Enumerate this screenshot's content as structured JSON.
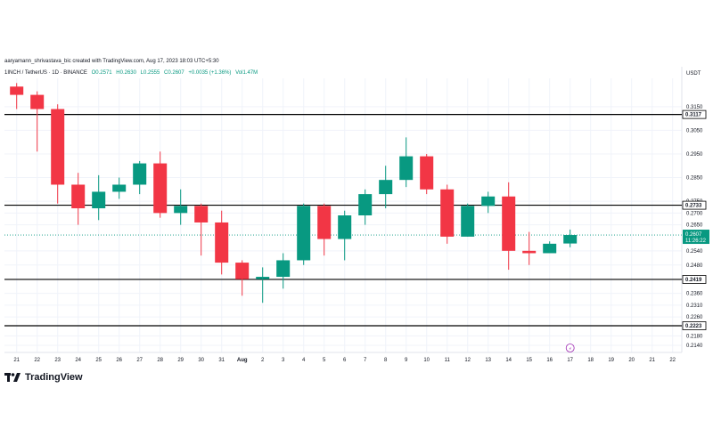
{
  "header": {
    "credit": "aaryamann_shrivastava_bic created with TradingView.com, Aug 17, 2023 18:03 UTC+5:30",
    "symbol": "1INCH / TetherUS · 1D · BINANCE",
    "ohlc": {
      "o": "O0.2571",
      "h": "H0.2630",
      "l": "L0.2555",
      "c": "C0.2607",
      "change": "+0.0035 (+1.36%)",
      "volume": "Vol1.47M"
    }
  },
  "currency_label": "USDT",
  "brand": "TradingView",
  "colors": {
    "up": "#089981",
    "down": "#f23645",
    "line": "#000000",
    "current": "#089981",
    "grid": "#f0f3fa"
  },
  "chart_data": {
    "type": "candlestick",
    "x": [
      "21",
      "22",
      "23",
      "24",
      "25",
      "26",
      "27",
      "28",
      "29",
      "30",
      "31",
      "Aug",
      "2",
      "3",
      "4",
      "5",
      "6",
      "7",
      "8",
      "9",
      "10",
      "11",
      "12",
      "13",
      "14",
      "15",
      "16",
      "17"
    ],
    "ohlc": [
      {
        "o": 0.3235,
        "h": 0.325,
        "l": 0.314,
        "c": 0.32
      },
      {
        "o": 0.32,
        "h": 0.3215,
        "l": 0.296,
        "c": 0.314
      },
      {
        "o": 0.314,
        "h": 0.316,
        "l": 0.274,
        "c": 0.282
      },
      {
        "o": 0.282,
        "h": 0.287,
        "l": 0.265,
        "c": 0.272
      },
      {
        "o": 0.272,
        "h": 0.286,
        "l": 0.267,
        "c": 0.279
      },
      {
        "o": 0.279,
        "h": 0.285,
        "l": 0.276,
        "c": 0.282
      },
      {
        "o": 0.282,
        "h": 0.292,
        "l": 0.278,
        "c": 0.291
      },
      {
        "o": 0.291,
        "h": 0.296,
        "l": 0.268,
        "c": 0.27
      },
      {
        "o": 0.27,
        "h": 0.28,
        "l": 0.265,
        "c": 0.273
      },
      {
        "o": 0.273,
        "h": 0.274,
        "l": 0.252,
        "c": 0.266
      },
      {
        "o": 0.266,
        "h": 0.271,
        "l": 0.244,
        "c": 0.249
      },
      {
        "o": 0.249,
        "h": 0.25,
        "l": 0.235,
        "c": 0.242
      },
      {
        "o": 0.242,
        "h": 0.247,
        "l": 0.232,
        "c": 0.243
      },
      {
        "o": 0.243,
        "h": 0.253,
        "l": 0.238,
        "c": 0.25
      },
      {
        "o": 0.25,
        "h": 0.274,
        "l": 0.248,
        "c": 0.273
      },
      {
        "o": 0.273,
        "h": 0.274,
        "l": 0.252,
        "c": 0.259
      },
      {
        "o": 0.259,
        "h": 0.271,
        "l": 0.25,
        "c": 0.269
      },
      {
        "o": 0.269,
        "h": 0.28,
        "l": 0.265,
        "c": 0.278
      },
      {
        "o": 0.278,
        "h": 0.29,
        "l": 0.272,
        "c": 0.284
      },
      {
        "o": 0.284,
        "h": 0.302,
        "l": 0.281,
        "c": 0.294
      },
      {
        "o": 0.294,
        "h": 0.295,
        "l": 0.278,
        "c": 0.28
      },
      {
        "o": 0.28,
        "h": 0.282,
        "l": 0.257,
        "c": 0.26
      },
      {
        "o": 0.26,
        "h": 0.274,
        "l": 0.26,
        "c": 0.273
      },
      {
        "o": 0.273,
        "h": 0.279,
        "l": 0.27,
        "c": 0.277
      },
      {
        "o": 0.277,
        "h": 0.283,
        "l": 0.246,
        "c": 0.254
      },
      {
        "o": 0.254,
        "h": 0.262,
        "l": 0.248,
        "c": 0.253
      },
      {
        "o": 0.253,
        "h": 0.258,
        "l": 0.253,
        "c": 0.257
      },
      {
        "o": 0.2571,
        "h": 0.263,
        "l": 0.2555,
        "c": 0.2607
      }
    ],
    "extra_x_ticks": [
      "18",
      "19",
      "20",
      "21",
      "22"
    ],
    "y_ticks": [
      "0.3150",
      "0.3050",
      "0.2950",
      "0.2850",
      "0.2750",
      "0.2700",
      "0.2650",
      "0.2540",
      "0.2480",
      "0.2360",
      "0.2310",
      "0.2260",
      "0.2180",
      "0.2140"
    ],
    "ylim": [
      0.211,
      0.327
    ],
    "levels": [
      {
        "value": 0.3117,
        "label": "0.3117"
      },
      {
        "value": 0.2733,
        "label": "0.2733"
      },
      {
        "value": 0.2419,
        "label": "0.2419"
      },
      {
        "value": 0.2223,
        "label": "0.2223"
      }
    ],
    "current_price": {
      "value": 0.2607,
      "label": "0.2607",
      "countdown": "11:26:22"
    },
    "marker": {
      "x_index": 27,
      "label": "⚡"
    }
  }
}
